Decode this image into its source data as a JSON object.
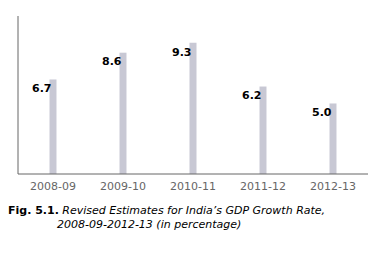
{
  "chart_data": {
    "type": "bar",
    "title": "Fig. 5.1.",
    "subtitle": " Revised Estimates for India’s GDP Growth Rate,\n              2008-09-2012-13 (in percentage)",
    "categories": [
      "2008-09",
      "2009-10",
      "2010-11",
      "2011-12",
      "2012-13"
    ],
    "values": [
      6.7,
      8.6,
      9.3,
      6.2,
      5.0
    ],
    "value_labels": [
      "6.7",
      "8.6",
      "9.3",
      "6.2",
      "5.0"
    ],
    "data_labels": true,
    "color": "#c8c8d4",
    "ylim": [
      0,
      11.2
    ],
    "grid": false,
    "tick_labels": "x"
  }
}
